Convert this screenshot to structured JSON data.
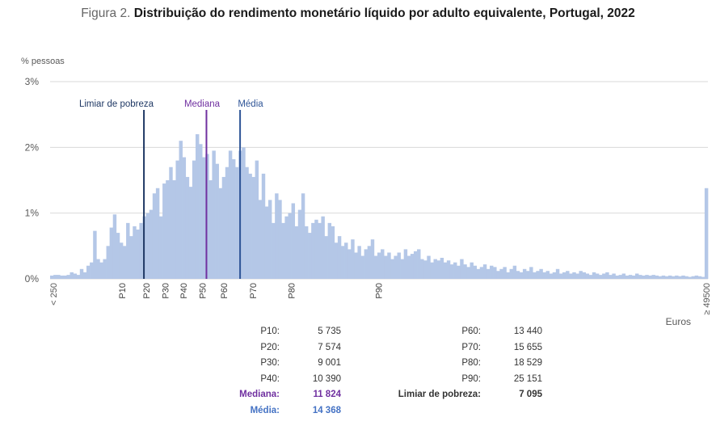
{
  "title": {
    "figure": "Figura 2.",
    "text": "Distribuição do rendimento monetário líquido por adulto equivalente, Portugal, 2022"
  },
  "chart_data": {
    "type": "bar",
    "title": "Distribuição do rendimento monetário líquido por adulto equivalente, Portugal, 2022",
    "ylabel": "% pessoas",
    "xlabel": "Euros",
    "ylim": [
      0,
      3
    ],
    "y_ticks": [
      "0%",
      "1%",
      "2%",
      "3%"
    ],
    "y_tick_values": [
      0,
      1,
      2,
      3
    ],
    "x_first_label": "< 250",
    "x_last_label": "≥ 49500",
    "bin_width_eur": 250,
    "decile_labels": [
      {
        "label": "P10",
        "value": 5735
      },
      {
        "label": "P20",
        "value": 7574
      },
      {
        "label": "P30",
        "value": 9001
      },
      {
        "label": "P40",
        "value": 10390
      },
      {
        "label": "P50",
        "value": 11824
      },
      {
        "label": "P60",
        "value": 13440
      },
      {
        "label": "P70",
        "value": 15655
      },
      {
        "label": "P80",
        "value": 18529
      },
      {
        "label": "P90",
        "value": 25151
      }
    ],
    "reference_lines": [
      {
        "name": "Limiar de pobreza",
        "value": 7095,
        "color": "#1f3864"
      },
      {
        "name": "Mediana",
        "value": 11824,
        "color": "#7030a0"
      },
      {
        "name": "Média",
        "value": 14368,
        "color": "#2f5597"
      }
    ],
    "values": [
      0.05,
      0.06,
      0.06,
      0.05,
      0.05,
      0.06,
      0.1,
      0.08,
      0.06,
      0.15,
      0.1,
      0.2,
      0.25,
      0.73,
      0.3,
      0.25,
      0.3,
      0.5,
      0.78,
      0.98,
      0.7,
      0.55,
      0.5,
      0.85,
      0.65,
      0.8,
      0.75,
      0.85,
      0.95,
      1.0,
      1.05,
      1.3,
      1.38,
      0.95,
      1.45,
      1.5,
      1.7,
      1.5,
      1.8,
      2.1,
      1.85,
      1.55,
      1.4,
      1.8,
      2.2,
      2.05,
      1.85,
      1.9,
      1.5,
      1.95,
      1.75,
      1.38,
      1.55,
      1.7,
      1.95,
      1.82,
      1.7,
      1.95,
      2.0,
      1.7,
      1.6,
      1.55,
      1.8,
      1.2,
      1.6,
      1.1,
      1.2,
      0.85,
      1.3,
      1.2,
      0.85,
      0.95,
      1.0,
      1.15,
      0.8,
      1.05,
      1.3,
      0.8,
      0.7,
      0.85,
      0.9,
      0.85,
      0.95,
      0.65,
      0.85,
      0.8,
      0.55,
      0.65,
      0.5,
      0.55,
      0.45,
      0.6,
      0.4,
      0.5,
      0.35,
      0.45,
      0.5,
      0.6,
      0.35,
      0.4,
      0.45,
      0.35,
      0.4,
      0.3,
      0.35,
      0.4,
      0.3,
      0.45,
      0.35,
      0.38,
      0.42,
      0.45,
      0.3,
      0.28,
      0.35,
      0.25,
      0.3,
      0.28,
      0.32,
      0.25,
      0.28,
      0.22,
      0.25,
      0.2,
      0.3,
      0.22,
      0.18,
      0.25,
      0.2,
      0.15,
      0.18,
      0.22,
      0.15,
      0.2,
      0.18,
      0.12,
      0.15,
      0.18,
      0.1,
      0.15,
      0.2,
      0.12,
      0.1,
      0.15,
      0.12,
      0.18,
      0.1,
      0.12,
      0.15,
      0.1,
      0.12,
      0.08,
      0.1,
      0.15,
      0.08,
      0.1,
      0.12,
      0.08,
      0.1,
      0.08,
      0.12,
      0.1,
      0.08,
      0.06,
      0.1,
      0.08,
      0.06,
      0.08,
      0.1,
      0.06,
      0.08,
      0.05,
      0.06,
      0.08,
      0.05,
      0.06,
      0.05,
      0.08,
      0.06,
      0.05,
      0.06,
      0.05,
      0.06,
      0.05,
      0.04,
      0.05,
      0.04,
      0.05,
      0.04,
      0.05,
      0.04,
      0.05,
      0.04,
      0.03,
      0.04,
      0.05,
      0.04,
      0.03,
      1.38
    ]
  },
  "stats_left": [
    {
      "label": "P10:",
      "value": "5 735",
      "style": "normal"
    },
    {
      "label": "P20:",
      "value": "7 574",
      "style": "normal"
    },
    {
      "label": "P30:",
      "value": "9 001",
      "style": "normal"
    },
    {
      "label": "P40:",
      "value": "10 390",
      "style": "normal"
    },
    {
      "label": "Mediana:",
      "value": "11 824",
      "style": "purple"
    },
    {
      "label": "Média:",
      "value": "14 368",
      "style": "blue"
    }
  ],
  "stats_right": [
    {
      "label": "P60:",
      "value": "13 440",
      "style": "normal"
    },
    {
      "label": "P70:",
      "value": "15 655",
      "style": "normal"
    },
    {
      "label": "P80:",
      "value": "18 529",
      "style": "normal"
    },
    {
      "label": "P90:",
      "value": "25 151",
      "style": "normal"
    },
    {
      "label": "Limiar de pobreza:",
      "value": "7 095",
      "style": "bold"
    }
  ],
  "colors": {
    "bar": "#b4c7e7",
    "grid": "#d9d9d9",
    "axis_text": "#595959"
  }
}
